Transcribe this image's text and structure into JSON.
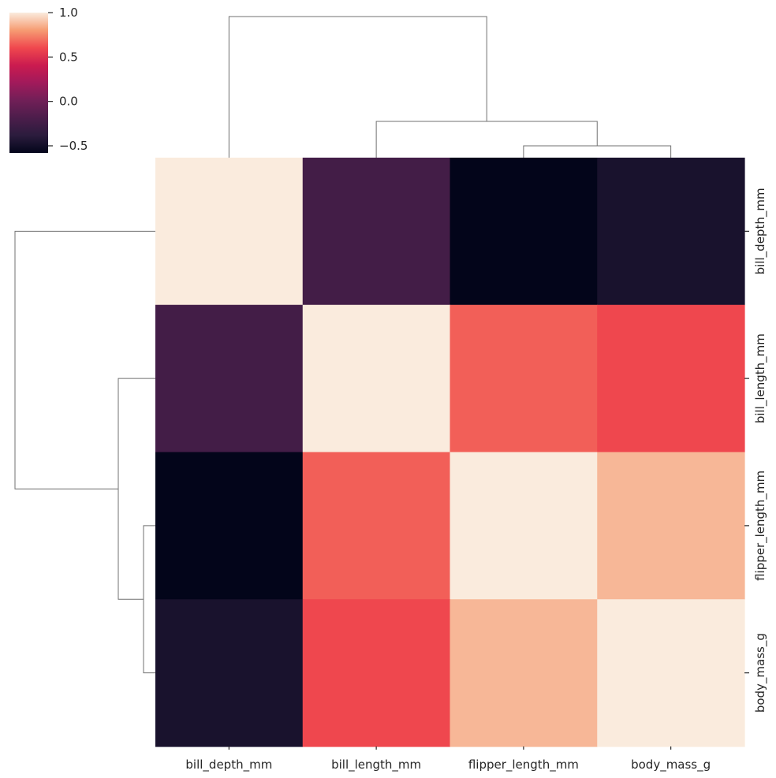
{
  "chart_data": {
    "type": "heatmap",
    "title": "",
    "xlabel": "",
    "ylabel": "",
    "columns": [
      "bill_depth_mm",
      "bill_length_mm",
      "flipper_length_mm",
      "body_mass_g"
    ],
    "rows": [
      "bill_depth_mm",
      "bill_length_mm",
      "flipper_length_mm",
      "body_mass_g"
    ],
    "values": [
      [
        1.0,
        -0.24,
        -0.58,
        -0.47
      ],
      [
        -0.24,
        1.0,
        0.66,
        0.6
      ],
      [
        -0.58,
        0.66,
        1.0,
        0.87
      ],
      [
        -0.47,
        0.6,
        0.87,
        1.0
      ]
    ],
    "colormap": "rocket",
    "vmin": -0.58,
    "vmax": 1.0,
    "colorbar": {
      "ticks": [
        1.0,
        0.5,
        0.0,
        -0.5
      ],
      "tick_labels": [
        "1.0",
        "0.5",
        "0.0",
        "−0.5"
      ],
      "position": "top-left"
    },
    "dendrogram_columns": {
      "merges": [
        {
          "left": "flipper_length_mm",
          "right": "body_mass_g"
        },
        {
          "left": "bill_length_mm",
          "right": "flipper_length_mm+body_mass_g"
        },
        {
          "left": "bill_depth_mm",
          "right": "bill_length_mm+flipper_length_mm+body_mass_g"
        }
      ]
    },
    "dendrogram_rows": {
      "merges": [
        {
          "top": "flipper_length_mm",
          "bottom": "body_mass_g"
        },
        {
          "top": "bill_length_mm",
          "bottom": "flipper_length_mm+body_mass_g"
        },
        {
          "top": "bill_depth_mm",
          "bottom": "bill_length_mm+flipper_length_mm+body_mass_g"
        }
      ]
    },
    "grid": false
  }
}
